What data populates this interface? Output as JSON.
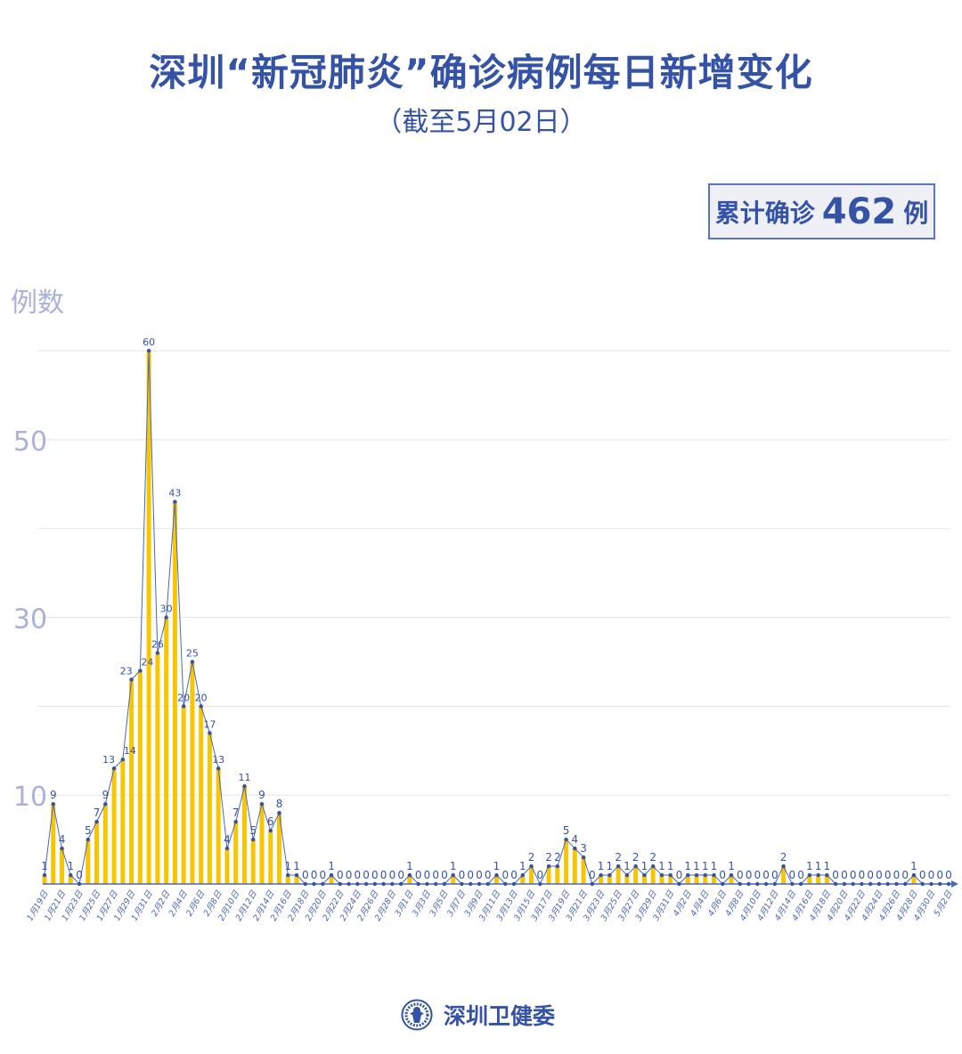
{
  "header": {
    "title": "深圳“新冠肺炎”确诊病例每日新增变化",
    "subtitle": "（截至5月02日）"
  },
  "total": {
    "label": "累计确诊",
    "value": "462",
    "unit": "例"
  },
  "footer": {
    "org": "深圳卫健委",
    "logo_icon": "health-commission-logo-icon"
  },
  "colors": {
    "primary": "#3553a6",
    "bar": "#f7c600",
    "grid": "#e3e3e3",
    "axis_label": "#a9b1d9"
  },
  "chart_data": {
    "type": "bar+line",
    "title": "深圳“新冠肺炎”确诊病例每日新增变化",
    "ylabel": "例数",
    "xlabel": "",
    "ylim": [
      0,
      60
    ],
    "yticks_labeled": [
      10,
      30,
      50
    ],
    "gridlines": [
      10,
      20,
      30,
      40,
      50,
      60
    ],
    "grid": true,
    "tick_label_every": 2,
    "categories": [
      "1月19日",
      "1月20日",
      "1月21日",
      "1月22日",
      "1月23日",
      "1月24日",
      "1月25日",
      "1月26日",
      "1月27日",
      "1月28日",
      "1月29日",
      "1月30日",
      "1月31日",
      "2月1日",
      "2月2日",
      "2月3日",
      "2月4日",
      "2月5日",
      "2月6日",
      "2月7日",
      "2月8日",
      "2月9日",
      "2月10日",
      "2月11日",
      "2月12日",
      "2月13日",
      "2月14日",
      "2月15日",
      "2月16日",
      "2月17日",
      "2月18日",
      "2月19日",
      "2月20日",
      "2月21日",
      "2月22日",
      "2月23日",
      "2月24日",
      "2月25日",
      "2月26日",
      "2月27日",
      "2月28日",
      "2月29日",
      "3月1日",
      "3月2日",
      "3月3日",
      "3月4日",
      "3月5日",
      "3月6日",
      "3月7日",
      "3月8日",
      "3月9日",
      "3月10日",
      "3月11日",
      "3月12日",
      "3月13日",
      "3月14日",
      "3月15日",
      "3月16日",
      "3月17日",
      "3月18日",
      "3月19日",
      "3月20日",
      "3月21日",
      "3月22日",
      "3月23日",
      "3月24日",
      "3月25日",
      "3月26日",
      "3月27日",
      "3月28日",
      "3月29日",
      "3月30日",
      "3月31日",
      "4月1日",
      "4月2日",
      "4月3日",
      "4月4日",
      "4月5日",
      "4月6日",
      "4月7日",
      "4月8日",
      "4月9日",
      "4月10日",
      "4月11日",
      "4月12日",
      "4月13日",
      "4月14日",
      "4月15日",
      "4月16日",
      "4月17日",
      "4月18日",
      "4月19日",
      "4月20日",
      "4月21日",
      "4月22日",
      "4月23日",
      "4月24日",
      "4月25日",
      "4月26日",
      "4月27日",
      "4月28日",
      "4月29日",
      "4月30日",
      "5月1日",
      "5月2日"
    ],
    "values": [
      1,
      9,
      4,
      1,
      0,
      5,
      7,
      9,
      13,
      14,
      23,
      24,
      60,
      26,
      30,
      43,
      20,
      25,
      20,
      17,
      13,
      4,
      7,
      11,
      5,
      9,
      6,
      8,
      1,
      1,
      0,
      0,
      0,
      1,
      0,
      0,
      0,
      0,
      0,
      0,
      0,
      0,
      1,
      0,
      0,
      0,
      0,
      1,
      0,
      0,
      0,
      0,
      1,
      0,
      0,
      1,
      2,
      0,
      2,
      2,
      5,
      4,
      3,
      0,
      1,
      1,
      2,
      1,
      2,
      1,
      2,
      1,
      1,
      0,
      1,
      1,
      1,
      1,
      0,
      1,
      0,
      0,
      0,
      0,
      0,
      2,
      0,
      0,
      1,
      1,
      1,
      0,
      0,
      0,
      0,
      0,
      0,
      0,
      0,
      0,
      1,
      0,
      0,
      0,
      0
    ]
  }
}
